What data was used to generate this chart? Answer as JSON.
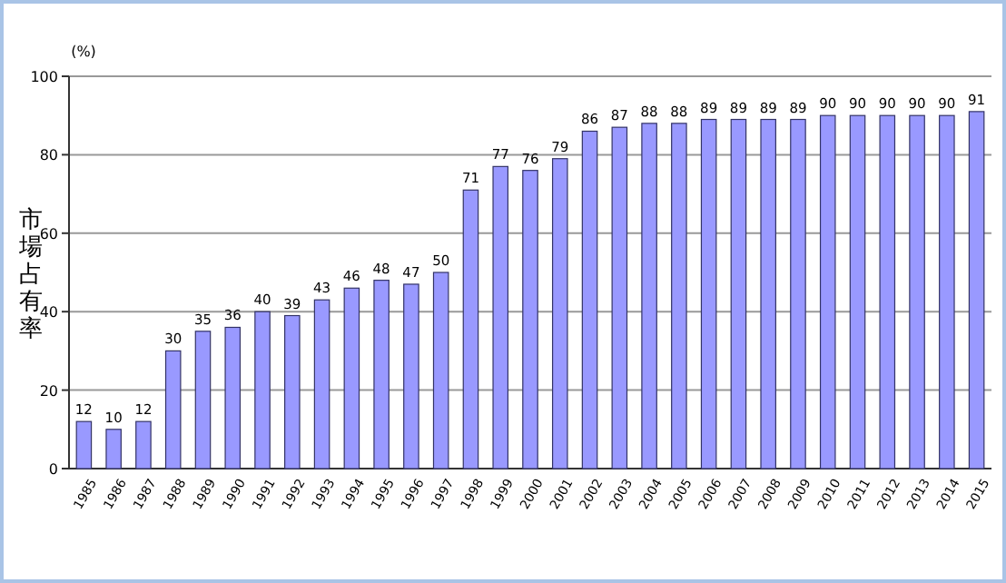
{
  "chart_data": {
    "type": "bar",
    "ylabel": "市場占有率",
    "annotations": [
      "(%)"
    ],
    "categories": [
      "1985",
      "1986",
      "1987",
      "1988",
      "1989",
      "1990",
      "1991",
      "1992",
      "1993",
      "1994",
      "1995",
      "1996",
      "1997",
      "1998",
      "1999",
      "2000",
      "2001",
      "2002",
      "2003",
      "2004",
      "2005",
      "2006",
      "2007",
      "2008",
      "2009",
      "2010",
      "2011",
      "2012",
      "2013",
      "2014",
      "2015"
    ],
    "values": [
      12,
      10,
      12,
      30,
      35,
      36,
      40,
      39,
      43,
      46,
      48,
      47,
      50,
      71,
      77,
      76,
      79,
      86,
      87,
      88,
      88,
      89,
      89,
      89,
      89,
      90,
      90,
      90,
      90,
      90,
      91
    ],
    "color": "#9999ff",
    "ylim": [
      0,
      100
    ],
    "yticks": [
      0,
      20,
      40,
      60,
      80,
      100
    ],
    "grid": "y",
    "data_labels": true
  }
}
